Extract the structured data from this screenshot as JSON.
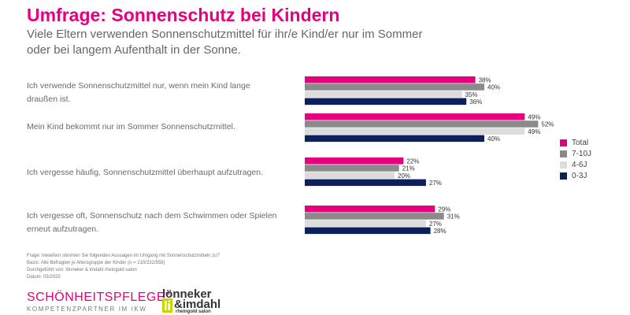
{
  "title": "Umfrage: Sonnenschutz bei Kindern",
  "subtitle": "Viele Eltern verwenden Sonnenschutzmittel für ihr/e Kind/er nur im Sommer oder bei langem Aufenthalt in der Sonne.",
  "colors": {
    "accent": "#e6007e",
    "series": [
      "#e6007e",
      "#8a8a8a",
      "#dcdcdc",
      "#0d1f5c"
    ]
  },
  "chart_data": {
    "type": "bar",
    "orientation": "horizontal",
    "categories": [
      "Ich verwende Sonnenschutzmittel nur, wenn mein Kind lange draußen ist.",
      "Mein Kind bekommt nur im Sommer Sonnenschutzmittel.",
      "Ich vergesse häufig, Sonnenschutzmittel überhaupt aufzutragen.",
      "Ich vergesse oft, Sonnenschutz nach dem Schwimmen oder Spielen erneut aufzutragen."
    ],
    "series": [
      {
        "name": "Total",
        "values": [
          38,
          49,
          22,
          29
        ]
      },
      {
        "name": "7-10J",
        "values": [
          40,
          52,
          21,
          31
        ]
      },
      {
        "name": "4-6J",
        "values": [
          35,
          49,
          20,
          27
        ]
      },
      {
        "name": "0-3J",
        "values": [
          36,
          40,
          27,
          28
        ]
      }
    ],
    "value_suffix": "%",
    "xlim": [
      0,
      100
    ],
    "legend_position": "right"
  },
  "footnotes": {
    "question_label": "Frage:",
    "question": "Inwiefern stimmen Sie folgenden Aussagen im Umgang mit Sonnenschutzmitteln zu?",
    "basis_label": "Basis:",
    "basis": "Alle Befragten je Altersgruppe der Kinder (n = 210/232/558)",
    "by_label": "Durchgeführt von:",
    "by": "lönneker & imdahl rheingold salon",
    "date_label": "Datum:",
    "date": "05/2025"
  },
  "logos": {
    "left_name": "SCHÖNHEITSPFLEGE\"",
    "left_tagline": "KOMPETENZPARTNER IM IKW",
    "right_line1": "lönneker",
    "right_line2": "&imdahl",
    "right_sub": "rheingold salon"
  }
}
